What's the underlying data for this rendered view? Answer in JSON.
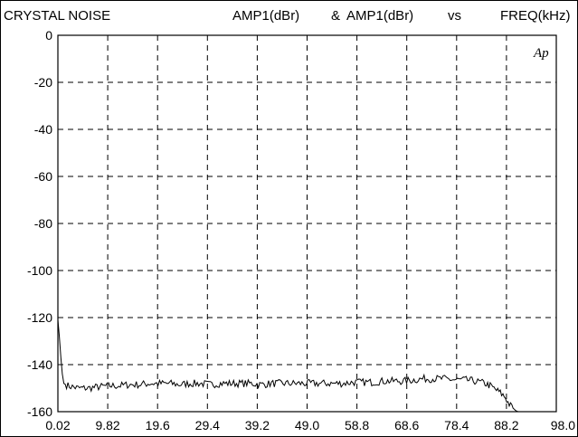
{
  "chart_data": {
    "type": "line",
    "title": "CRYSTAL NOISE",
    "header_right": {
      "y_label_1": "AMP1(dBr)",
      "amp": "&",
      "y_label_2": "AMP1(dBr)",
      "vs": "vs",
      "x_label": "FREQ(kHz)"
    },
    "logo": "Ap",
    "xlim": [
      0.02,
      98.0
    ],
    "ylim": [
      -160,
      0
    ],
    "x_ticks": [
      "0.02",
      "9.82",
      "19.6",
      "29.4",
      "39.2",
      "49.0",
      "58.8",
      "68.6",
      "78.4",
      "88.2",
      "98.0"
    ],
    "y_ticks": [
      "0",
      "-20",
      "-40",
      "-60",
      "-80",
      "-100",
      "-120",
      "-140",
      "-160"
    ],
    "grid": true,
    "grid_style": "dashed",
    "colors": {
      "line": "#000000",
      "grid": "#000000",
      "background": "#ffffff"
    },
    "series": [
      {
        "x": [
          0.02,
          0.3,
          0.6,
          0.9,
          1.2,
          2.0,
          4.0,
          6.0,
          8.0,
          10.0,
          12.0,
          14.0,
          16.0,
          18.0,
          20.0,
          22.0,
          24.0,
          26.0,
          28.0,
          30.0,
          32.0,
          34.0,
          36.0,
          38.0,
          40.0,
          42.0,
          44.0,
          46.0,
          48.0,
          50.0,
          52.0,
          54.0,
          56.0,
          58.0,
          60.0,
          62.0,
          64.0,
          66.0,
          68.0,
          70.0,
          72.0,
          74.0,
          76.0,
          78.0,
          80.0,
          82.0,
          84.0,
          85.0,
          86.0,
          87.0,
          88.0,
          88.5,
          89.0,
          89.5,
          90.0,
          90.5,
          91.0
        ],
        "y": [
          -121,
          -128,
          -137,
          -144,
          -148,
          -149,
          -150,
          -150,
          -149.5,
          -149,
          -149,
          -148.5,
          -148.5,
          -148,
          -148,
          -148,
          -148.5,
          -148,
          -148,
          -148.5,
          -148,
          -148,
          -148,
          -148,
          -148.5,
          -148,
          -148,
          -148,
          -148,
          -148,
          -148,
          -148,
          -148,
          -147.5,
          -147.5,
          -147.5,
          -147,
          -147,
          -147,
          -146.5,
          -146,
          -146,
          -146,
          -146.5,
          -146.5,
          -147,
          -148,
          -149,
          -150.5,
          -152,
          -154,
          -156,
          -157.5,
          -158.5,
          -159.5,
          -160,
          -160
        ]
      }
    ]
  }
}
